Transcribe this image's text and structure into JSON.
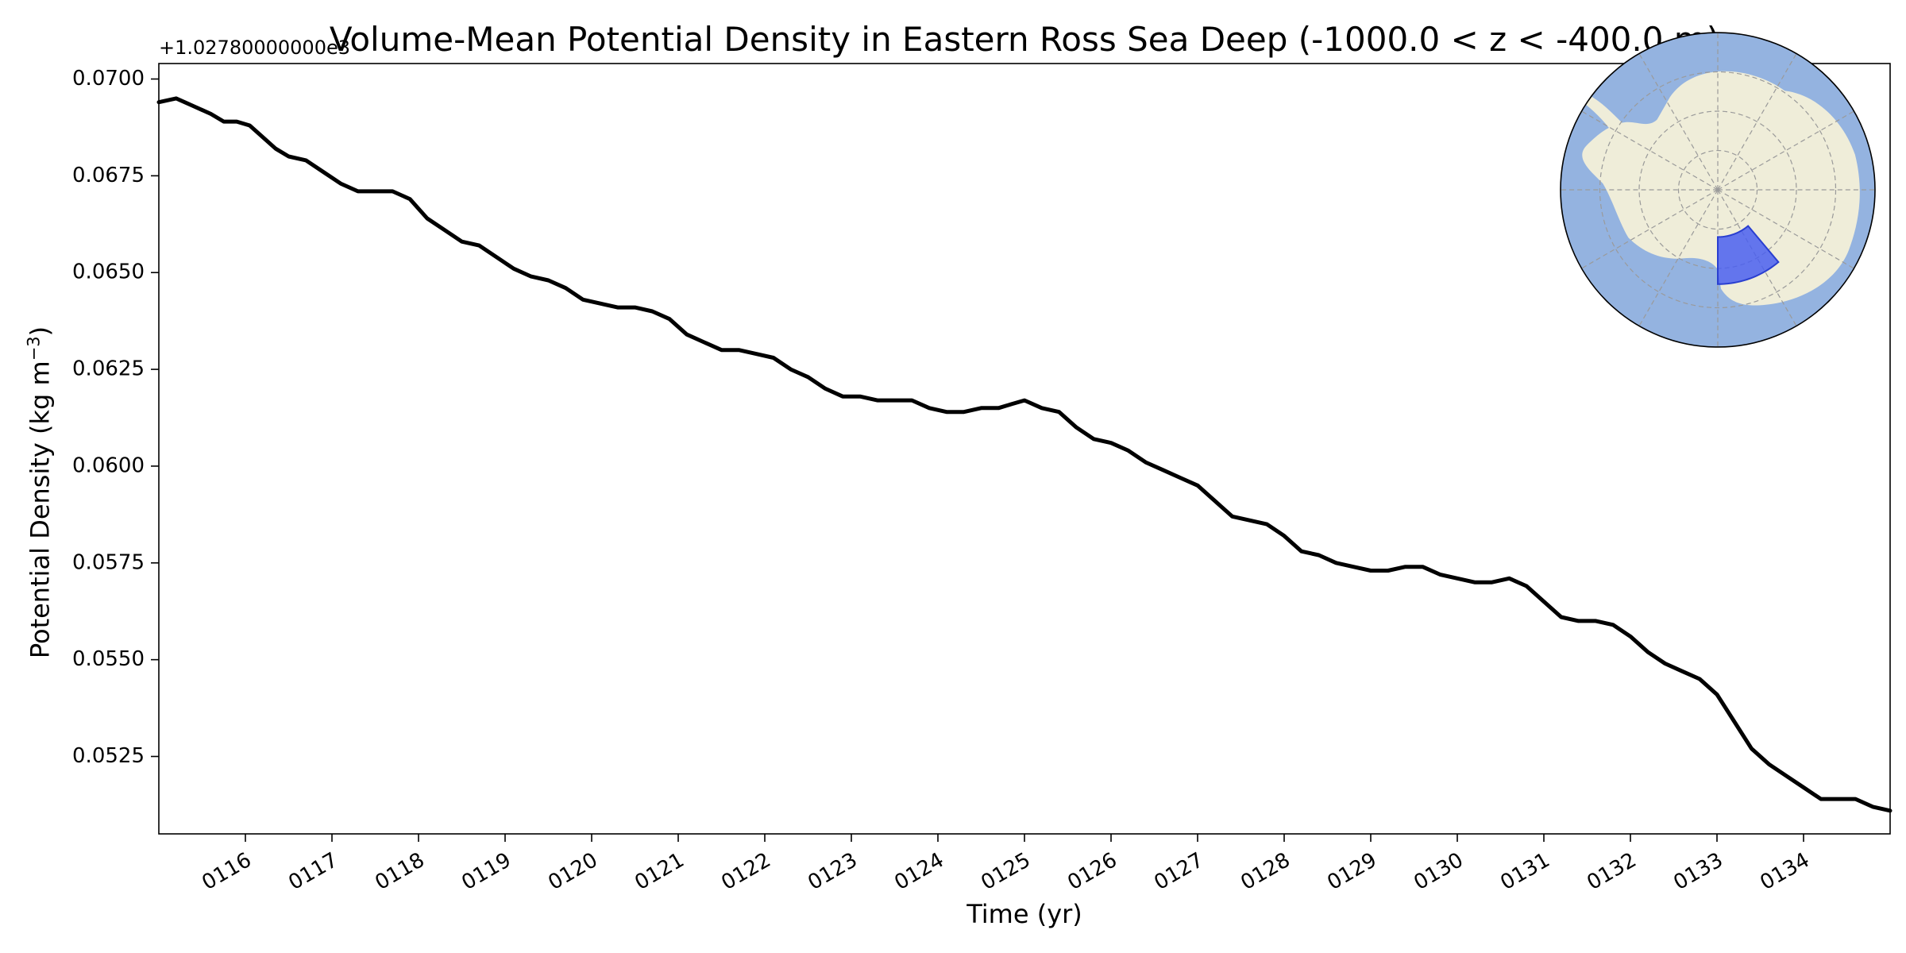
{
  "chart_data": {
    "type": "line",
    "title": "Volume-Mean Potential Density in Eastern Ross Sea Deep (-1000.0 < z < -400.0 m)",
    "xlabel": "Time (yr)",
    "ylabel_text": "Potential Density (kg m",
    "ylabel_sup": "−3",
    "ylabel_close": ")",
    "offset_text": "+1.02780000000e3",
    "xlim": [
      115.0,
      135.0
    ],
    "ylim": [
      0.0505,
      0.0704
    ],
    "x_tick_values": [
      116,
      117,
      118,
      119,
      120,
      121,
      122,
      123,
      124,
      125,
      126,
      127,
      128,
      129,
      130,
      131,
      132,
      133,
      134
    ],
    "x_tick_labels": [
      "0116",
      "0117",
      "0118",
      "0119",
      "0120",
      "0121",
      "0122",
      "0123",
      "0124",
      "0125",
      "0126",
      "0127",
      "0128",
      "0129",
      "0130",
      "0131",
      "0132",
      "0133",
      "0134"
    ],
    "y_tick_values": [
      0.0525,
      0.055,
      0.0575,
      0.06,
      0.0625,
      0.065,
      0.0675,
      0.07
    ],
    "y_tick_labels": [
      "0.0525",
      "0.0550",
      "0.0575",
      "0.0600",
      "0.0625",
      "0.0650",
      "0.0675",
      "0.0700"
    ],
    "grid": false,
    "line_color": "#000000",
    "series": [
      {
        "x": [
          115.0,
          115.2,
          115.4,
          115.6,
          115.75,
          115.9,
          116.05,
          116.2,
          116.35,
          116.5,
          116.7,
          116.9,
          117.1,
          117.3,
          117.5,
          117.7,
          117.9,
          118.1,
          118.3,
          118.5,
          118.7,
          118.9,
          119.1,
          119.3,
          119.5,
          119.7,
          119.9,
          120.1,
          120.3,
          120.5,
          120.7,
          120.9,
          121.1,
          121.3,
          121.5,
          121.7,
          121.9,
          122.1,
          122.3,
          122.5,
          122.7,
          122.9,
          123.1,
          123.3,
          123.5,
          123.7,
          123.9,
          124.1,
          124.3,
          124.5,
          124.7,
          124.85,
          125.0,
          125.2,
          125.4,
          125.6,
          125.8,
          126.0,
          126.2,
          126.4,
          126.6,
          126.8,
          127.0,
          127.2,
          127.4,
          127.6,
          127.8,
          128.0,
          128.2,
          128.4,
          128.6,
          128.8,
          129.0,
          129.2,
          129.4,
          129.6,
          129.8,
          130.0,
          130.2,
          130.4,
          130.6,
          130.8,
          131.0,
          131.2,
          131.4,
          131.6,
          131.8,
          132.0,
          132.2,
          132.4,
          132.6,
          132.8,
          133.0,
          133.2,
          133.4,
          133.6,
          133.8,
          134.0,
          134.2,
          134.4,
          134.6,
          134.8,
          135.0
        ],
        "y": [
          0.0694,
          0.0695,
          0.0693,
          0.0691,
          0.0689,
          0.0689,
          0.0688,
          0.0685,
          0.0682,
          0.068,
          0.0679,
          0.0676,
          0.0673,
          0.0671,
          0.0671,
          0.0671,
          0.0669,
          0.0664,
          0.0661,
          0.0658,
          0.0657,
          0.0654,
          0.0651,
          0.0649,
          0.0648,
          0.0646,
          0.0643,
          0.0642,
          0.0641,
          0.0641,
          0.064,
          0.0638,
          0.0634,
          0.0632,
          0.063,
          0.063,
          0.0629,
          0.0628,
          0.0625,
          0.0623,
          0.062,
          0.0618,
          0.0618,
          0.0617,
          0.0617,
          0.0617,
          0.0615,
          0.0614,
          0.0614,
          0.0615,
          0.0615,
          0.0616,
          0.0617,
          0.0615,
          0.0614,
          0.061,
          0.0607,
          0.0606,
          0.0604,
          0.0601,
          0.0599,
          0.0597,
          0.0595,
          0.0591,
          0.0587,
          0.0586,
          0.0585,
          0.0582,
          0.0578,
          0.0577,
          0.0575,
          0.0574,
          0.0573,
          0.0573,
          0.0574,
          0.0574,
          0.0572,
          0.0571,
          0.057,
          0.057,
          0.0571,
          0.0569,
          0.0565,
          0.0561,
          0.056,
          0.056,
          0.0559,
          0.0556,
          0.0552,
          0.0549,
          0.0547,
          0.0545,
          0.0541,
          0.0534,
          0.0527,
          0.0523,
          0.052,
          0.0517,
          0.0514,
          0.0514,
          0.0514,
          0.0512,
          0.0511
        ]
      }
    ]
  },
  "inset_map": {
    "ocean_color": "#94b3e0",
    "land_color": "#efedd9",
    "region_color": "#4a5ff0",
    "region_lon_range": [
      180,
      220
    ],
    "region_lat_range": [
      -78,
      -66
    ],
    "map_lat_limit": -50,
    "graticule_color": "#9a9a9a"
  }
}
